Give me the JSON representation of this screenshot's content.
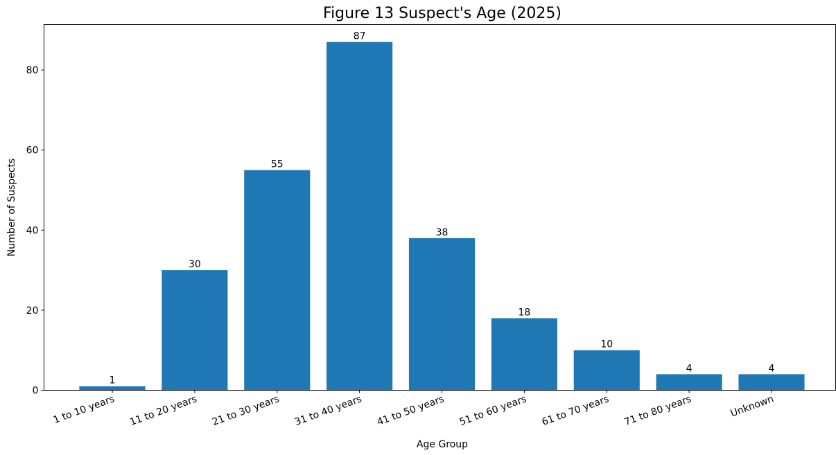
{
  "chart_data": {
    "type": "bar",
    "title": "Figure 13 Suspect's Age (2025)",
    "xlabel": "Age Group",
    "ylabel": "Number of Suspects",
    "categories": [
      "1 to 10 years",
      "11 to 20 years",
      "21 to 30 years",
      "31 to 40 years",
      "41 to 50 years",
      "51 to 60 years",
      "61 to 70 years",
      "71 to 80 years",
      "Unknown"
    ],
    "values": [
      1,
      30,
      55,
      87,
      38,
      18,
      10,
      4,
      4
    ],
    "data_labels": [
      "1",
      "30",
      "55",
      "87",
      "38",
      "18",
      "10",
      "4",
      "4"
    ],
    "ylim": [
      0,
      91.35
    ],
    "yticks": [
      0,
      20,
      40,
      60,
      80
    ],
    "ytick_labels": [
      "0",
      "20",
      "40",
      "60",
      "80"
    ],
    "xtick_rotation_deg": 20,
    "grid": false,
    "bar_color": "#1f77b4"
  }
}
